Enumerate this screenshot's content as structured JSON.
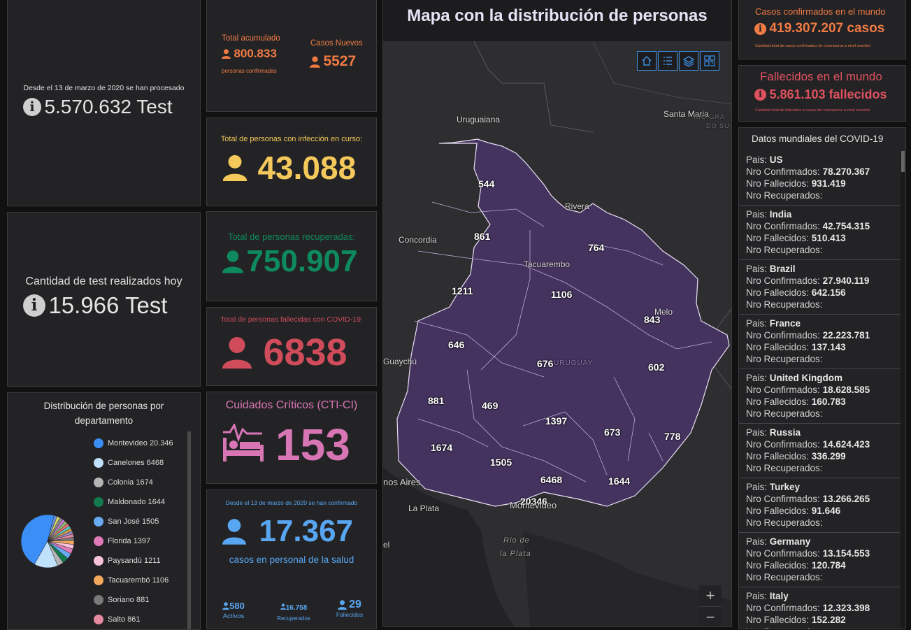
{
  "tests_total": {
    "caption": "Desde el 13 de marzo de 2020 se han procesado",
    "value": "5.570.632 Test"
  },
  "tests_today": {
    "caption": "Cantidad de test realizados hoy",
    "value": "15.966 Test"
  },
  "accumulated": {
    "label": "Total acumulado",
    "value": "800.833",
    "sub": "personas confirmadas"
  },
  "new_cases": {
    "label": "Casos Nuevos",
    "value": "5527"
  },
  "active": {
    "label": "Total de personas con infección en curso:",
    "value": "43.088"
  },
  "recovered": {
    "label": "Total de personas recuperadas:",
    "value": "750.907"
  },
  "deceased": {
    "label": "Total de personas fallecidas con COVID-19:",
    "value": "6838"
  },
  "critical": {
    "label": "Cuidados Críticos (CTI-CI)",
    "value": "153"
  },
  "health_staff": {
    "caption": "Desde el 13 de marzo de 2020 se han confirmado",
    "value": "17.367",
    "sub": "casos en personal de la salud",
    "active_value": "580",
    "active_label": "Activos",
    "recovered_value": "16.758",
    "recovered_label": "Recuperados",
    "deaths_value": "29",
    "deaths_label": "Fallecidos"
  },
  "distribution": {
    "title": "Distribución de personas por departamento",
    "items": [
      {
        "name": "Montevideo",
        "value": "20.346",
        "color": "#3a8ef6"
      },
      {
        "name": "Canelones",
        "value": "6468",
        "color": "#bfe1fb"
      },
      {
        "name": "Colonia",
        "value": "1674",
        "color": "#b4b4b4"
      },
      {
        "name": "Maldonado",
        "value": "1644",
        "color": "#137a4e"
      },
      {
        "name": "San José",
        "value": "1505",
        "color": "#6aaaf2"
      },
      {
        "name": "Florida",
        "value": "1397",
        "color": "#e07ab6"
      },
      {
        "name": "Paysandú",
        "value": "1211",
        "color": "#f7c2da"
      },
      {
        "name": "Tacuarembó",
        "value": "1106",
        "color": "#f3a85c"
      },
      {
        "name": "Soriano",
        "value": "881",
        "color": "#7a7a7a"
      },
      {
        "name": "Salto",
        "value": "861",
        "color": "#e58aa0"
      }
    ]
  },
  "map": {
    "title": "Mapa con la distribución de personas",
    "tools": [
      "home-icon",
      "list-icon",
      "layers-icon",
      "qr-icon"
    ],
    "zoom_in": "+",
    "zoom_out": "−",
    "dept_labels": [
      "544",
      "861",
      "764",
      "1211",
      "1106",
      "843",
      "646",
      "676",
      "602",
      "881",
      "469",
      "1397",
      "673",
      "778",
      "1674",
      "1505",
      "6468",
      "1644",
      "20346"
    ],
    "places": [
      "Uruguaiana",
      "Santa Maria",
      "Rivera",
      "Concordia",
      "Tacuarembo",
      "Melo",
      "Guaychú",
      "URUGUAY",
      "nos Aires",
      "La Plata",
      "Montevideo",
      "el",
      "Rio de",
      "la Plata",
      "RIO GRA",
      "DO SU"
    ]
  },
  "world_confirmed": {
    "label": "Casos confirmados en el mundo",
    "value": "419.307.207 casos",
    "sub": "Cantidad total de casos confirmados de coronavirus a nivel mundial"
  },
  "world_deaths": {
    "label": "Fallecidos en el mundo",
    "value": "5.861.103 fallecidos",
    "sub": "Cantidad total de fallecidos a causa del coronavirus a nivel mundial"
  },
  "world_list": {
    "title": "Datos mundiales del COVID-19",
    "k_country": "Pais:",
    "k_conf": "Nro Confirmados:",
    "k_dead": "Nro Fallecidos:",
    "k_rec": "Nro Recuperados:",
    "rows": [
      {
        "country": "US",
        "confirmed": "78.270.367",
        "deaths": "931.419"
      },
      {
        "country": "India",
        "confirmed": "42.754.315",
        "deaths": "510.413"
      },
      {
        "country": "Brazil",
        "confirmed": "27.940.119",
        "deaths": "642.156"
      },
      {
        "country": "France",
        "confirmed": "22.223.781",
        "deaths": "137.143"
      },
      {
        "country": "United Kingdom",
        "confirmed": "18.628.585",
        "deaths": "160.783"
      },
      {
        "country": "Russia",
        "confirmed": "14.624.423",
        "deaths": "336.299"
      },
      {
        "country": "Turkey",
        "confirmed": "13.266.265",
        "deaths": "91.646"
      },
      {
        "country": "Germany",
        "confirmed": "13.154.553",
        "deaths": "120.784"
      },
      {
        "country": "Italy",
        "confirmed": "12.323.398",
        "deaths": "152.282"
      }
    ]
  },
  "colors": {
    "orange": "#f07b45",
    "yellow": "#f4c85a",
    "green": "#0f8a5f",
    "red": "#d04c5b",
    "pink": "#d876b5",
    "blue": "#58a6f2",
    "region": "#45335f"
  }
}
